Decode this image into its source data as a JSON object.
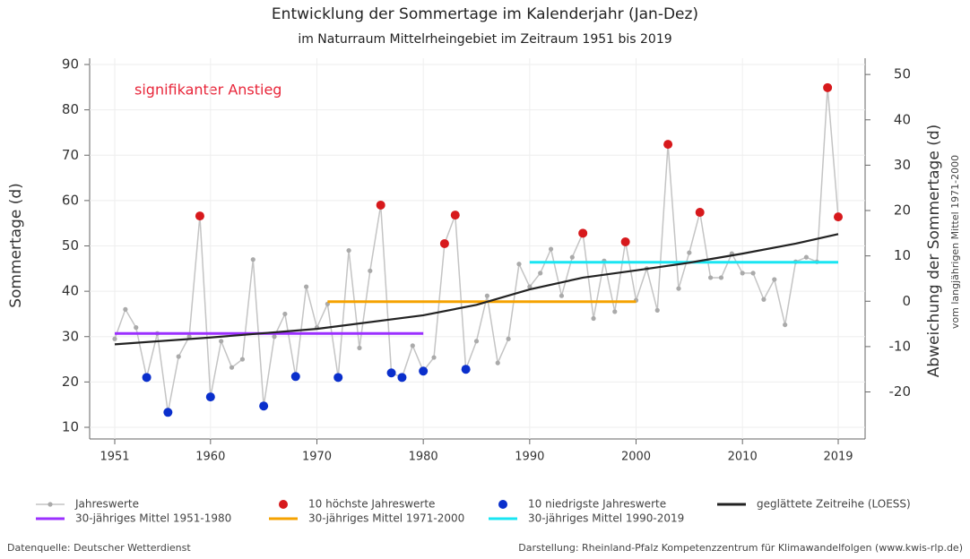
{
  "chart_data": {
    "type": "line",
    "title": "Entwicklung der Sommertage im Kalenderjahr (Jan-Dez)",
    "subtitle": "im Naturraum Mittelrheingebiet im Zeitraum 1951 bis 2019",
    "ylabel": "Sommertage (d)",
    "y2label": "Abweichung der Sommertage (d)",
    "y2sublabel": "vom langjährigen Mittel 1971-2000",
    "annotation": "signifikanter Anstieg",
    "source": "Datenquelle: Deutscher Wetterdienst",
    "credit": "Darstellung: Rheinland-Pfalz Kompetenzzentrum für Klimawandelfolgen (www.kwis-rlp.de)",
    "xlim": [
      1951,
      2019
    ],
    "xticks": [
      1951,
      1960,
      1970,
      1980,
      1990,
      2000,
      2010,
      2019
    ],
    "ylim": [
      10,
      90
    ],
    "yticks": [
      10,
      20,
      30,
      40,
      50,
      60,
      70,
      80,
      90
    ],
    "y2lim": [
      -27.8,
      52.2
    ],
    "y2ticks": [
      -20,
      -10,
      0,
      10,
      20,
      30,
      40,
      50
    ],
    "grid": true,
    "series": [
      {
        "name": "Jahreswerte",
        "color": "#c4c4c4",
        "style": "line-points",
        "x": [
          1951,
          1952,
          1953,
          1954,
          1955,
          1956,
          1957,
          1958,
          1959,
          1960,
          1961,
          1962,
          1963,
          1964,
          1965,
          1966,
          1967,
          1968,
          1969,
          1970,
          1971,
          1972,
          1973,
          1974,
          1975,
          1976,
          1977,
          1978,
          1979,
          1980,
          1981,
          1982,
          1983,
          1984,
          1985,
          1986,
          1987,
          1988,
          1989,
          1990,
          1991,
          1992,
          1993,
          1994,
          1995,
          1996,
          1997,
          1998,
          1999,
          2000,
          2001,
          2002,
          2003,
          2004,
          2005,
          2006,
          2007,
          2008,
          2009,
          2010,
          2011,
          2012,
          2013,
          2014,
          2015,
          2016,
          2017,
          2018,
          2019
        ],
        "values": [
          29.5,
          36,
          32,
          21,
          30.7,
          13.3,
          25.6,
          30,
          56.6,
          16.7,
          29,
          23.2,
          25,
          47,
          14.7,
          30,
          35,
          21.2,
          41,
          32,
          37.2,
          21,
          49,
          27.5,
          44.5,
          59,
          22,
          21,
          28,
          22.4,
          25.4,
          50.5,
          56.8,
          22.8,
          29,
          39,
          24.2,
          29.5,
          46,
          41,
          44,
          49.3,
          39,
          47.5,
          52.8,
          34,
          46.7,
          35.5,
          50.9,
          38,
          45,
          35.8,
          72.4,
          40.6,
          48.5,
          57.4,
          43,
          43,
          48.3,
          44,
          44,
          38.2,
          42.6,
          32.6,
          46.5,
          47.5,
          46.5,
          84.9,
          56.4
        ]
      },
      {
        "name": "10 höchste Jahreswerte",
        "color": "#d7191c",
        "style": "points",
        "x": [
          1959,
          1976,
          1982,
          1983,
          1995,
          1999,
          2003,
          2006,
          2018,
          2019
        ],
        "values": [
          56.6,
          59,
          50.5,
          56.8,
          52.8,
          50.9,
          72.4,
          57.4,
          84.9,
          56.4
        ]
      },
      {
        "name": "10 niedrigste Jahreswerte",
        "color": "#0a2fcc",
        "style": "points",
        "x": [
          1954,
          1956,
          1960,
          1965,
          1968,
          1972,
          1977,
          1978,
          1980,
          1984
        ],
        "values": [
          21,
          13.3,
          16.7,
          14.7,
          21.2,
          21,
          22,
          21,
          22.4,
          22.8
        ]
      },
      {
        "name": "geglättete Zeitreihe (LOESS)",
        "color": "#222222",
        "style": "line",
        "x": [
          1951,
          1960,
          1970,
          1980,
          1985,
          1990,
          1995,
          2000,
          2005,
          2010,
          2015,
          2019
        ],
        "values": [
          28.3,
          29.8,
          31.7,
          34.7,
          37,
          40.4,
          43,
          44.6,
          46.3,
          48.3,
          50.5,
          52.6
        ]
      },
      {
        "name": "30-jähriges Mittel 1951-1980",
        "color": "#9b30ff",
        "style": "line",
        "x": [
          1951,
          1980
        ],
        "values": [
          30.7,
          30.7
        ]
      },
      {
        "name": "30-jähriges Mittel 1971-2000",
        "color": "#f5a200",
        "style": "line",
        "x": [
          1971,
          2000
        ],
        "values": [
          37.7,
          37.7
        ]
      },
      {
        "name": "30-jähriges Mittel 1990-2019",
        "color": "#19e5f2",
        "style": "line",
        "x": [
          1990,
          2019
        ],
        "values": [
          46.4,
          46.4
        ]
      }
    ]
  }
}
